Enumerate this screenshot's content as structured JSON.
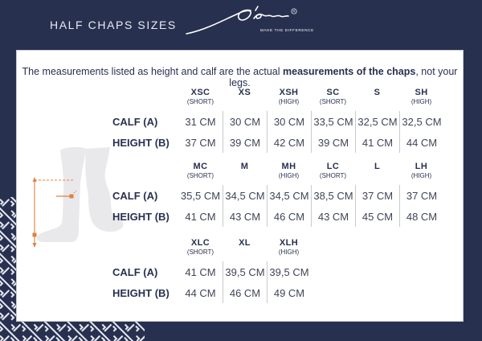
{
  "header": {
    "title": "HALF CHAPS SIZES",
    "brand": {
      "name": "Dy'on",
      "registered": "R",
      "tagline": "MAKE THE DIFFERENCE"
    }
  },
  "note": {
    "prefix": "The measurements listed as height and calf are the actual ",
    "bold": "measurements of the chaps",
    "suffix": ", not your legs."
  },
  "row_labels": {
    "calf": "CALF (A)",
    "height": "HEIGHT (B)"
  },
  "size_tables": [
    {
      "columns": [
        {
          "size": "XSC",
          "variant": "(SHORT)"
        },
        {
          "size": "XS",
          "variant": ""
        },
        {
          "size": "XSH",
          "variant": "(HIGH)"
        },
        {
          "size": "SC",
          "variant": "(SHORT)"
        },
        {
          "size": "S",
          "variant": ""
        },
        {
          "size": "SH",
          "variant": "(HIGH)"
        }
      ],
      "calf": [
        "31 CM",
        "30 CM",
        "30 CM",
        "33,5 CM",
        "32,5 CM",
        "32,5 CM"
      ],
      "height": [
        "37 CM",
        "39 CM",
        "42 CM",
        "39 CM",
        "41 CM",
        "44 CM"
      ]
    },
    {
      "columns": [
        {
          "size": "MC",
          "variant": "(SHORT)"
        },
        {
          "size": "M",
          "variant": ""
        },
        {
          "size": "MH",
          "variant": "(HIGH)"
        },
        {
          "size": "LC",
          "variant": "(SHORT)"
        },
        {
          "size": "L",
          "variant": ""
        },
        {
          "size": "LH",
          "variant": "(HIGH)"
        }
      ],
      "calf": [
        "35,5 CM",
        "34,5 CM",
        "34,5 CM",
        "38,5 CM",
        "37 CM",
        "37 CM"
      ],
      "height": [
        "41 CM",
        "43 CM",
        "46 CM",
        "43 CM",
        "45 CM",
        "48 CM"
      ]
    },
    {
      "columns": [
        {
          "size": "XLC",
          "variant": "(SHORT)"
        },
        {
          "size": "XL",
          "variant": ""
        },
        {
          "size": "XLH",
          "variant": "(HIGH)"
        }
      ],
      "calf": [
        "41 CM",
        "39,5 CM",
        "39,5 CM"
      ],
      "height": [
        "44 CM",
        "46 CM",
        "49 CM"
      ]
    }
  ],
  "colors": {
    "navy": "#283050",
    "orange": "#e0823f",
    "leg_gray": "#e9e9ec",
    "divider": "#c9c9ce",
    "data_text": "#3f4557"
  }
}
